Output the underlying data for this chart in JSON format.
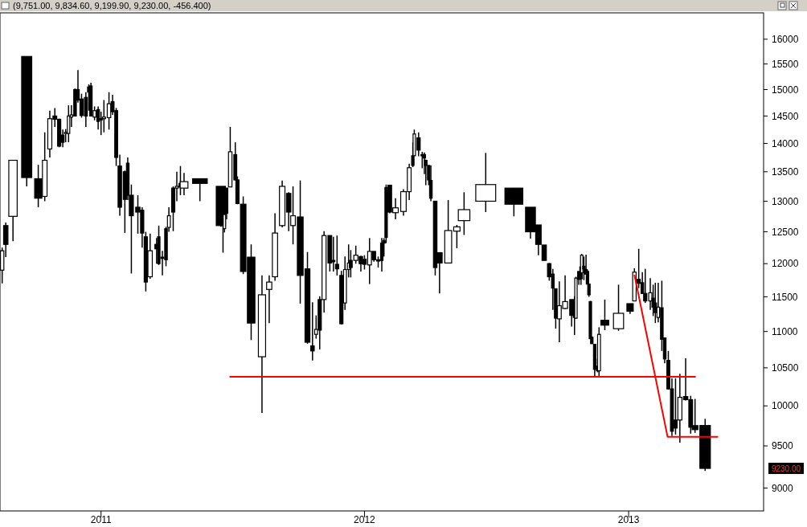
{
  "chart_data": {
    "type": "candlestick",
    "title": "(9,751.00, 9,834.60, 9,199.90, 9,230.00, -456.400)",
    "x": [
      "2010-08-17",
      "2010-08-22",
      "2010-09-01",
      "2010-09-20",
      "2010-10-06",
      "2010-10-15",
      "2010-10-22",
      "2010-10-29",
      "2010-11-04",
      "2010-11-09",
      "2010-11-13",
      "2010-11-17",
      "2010-11-21",
      "2010-11-26",
      "2010-11-30",
      "2010-12-05",
      "2010-12-11",
      "2010-12-15",
      "2010-12-18",
      "2010-12-23",
      "2010-12-28",
      "2011-01-01",
      "2011-01-05",
      "2011-01-12",
      "2011-01-17",
      "2011-01-22",
      "2011-01-27",
      "2011-02-03",
      "2011-02-07",
      "2011-02-12",
      "2011-02-21",
      "2011-02-27",
      "2011-03-04",
      "2011-03-10",
      "2011-03-19",
      "2011-03-22",
      "2011-03-27",
      "2011-04-01",
      "2011-04-05",
      "2011-04-11",
      "2011-04-16",
      "2011-04-21",
      "2011-04-26",
      "2011-05-18",
      "2011-06-16",
      "2011-06-19",
      "2011-06-21",
      "2011-06-24",
      "2011-06-29",
      "2011-07-06",
      "2011-07-09",
      "2011-07-17",
      "2011-07-28",
      "2011-08-12",
      "2011-08-22",
      "2011-08-30",
      "2011-09-09",
      "2011-09-18",
      "2011-09-24",
      "2011-10-04",
      "2011-10-14",
      "2011-10-21",
      "2011-10-26",
      "2011-10-31",
      "2011-11-06",
      "2011-11-14",
      "2011-11-19",
      "2011-11-24",
      "2011-11-30",
      "2011-12-05",
      "2011-12-10",
      "2011-12-13",
      "2011-12-20",
      "2011-12-27",
      "2012-01-01",
      "2012-01-08",
      "2012-01-14",
      "2012-01-20",
      "2012-01-25",
      "2012-01-28",
      "2012-01-31",
      "2012-02-05",
      "2012-02-13",
      "2012-02-24",
      "2012-03-03",
      "2012-03-08",
      "2012-03-10",
      "2012-03-16",
      "2012-03-21",
      "2012-03-24",
      "2012-03-26",
      "2012-03-30",
      "2012-04-02",
      "2012-04-08",
      "2012-04-14",
      "2012-04-26",
      "2012-05-08",
      "2012-05-18",
      "2012-06-17",
      "2012-07-26",
      "2012-08-18",
      "2012-08-29",
      "2012-09-06",
      "2012-09-13",
      "2012-09-18",
      "2012-09-22",
      "2012-09-27",
      "2012-10-05",
      "2012-10-14",
      "2012-10-18",
      "2012-10-20",
      "2012-10-24",
      "2012-10-27",
      "2012-10-28",
      "2012-10-31",
      "2012-11-03",
      "2012-11-05",
      "2012-11-07",
      "2012-11-09",
      "2012-11-11",
      "2012-11-15",
      "2012-11-19",
      "2012-11-21",
      "2012-11-29",
      "2012-12-18",
      "2013-01-03",
      "2013-01-09",
      "2013-01-15",
      "2013-01-20",
      "2013-01-24",
      "2013-01-31",
      "2013-02-04",
      "2013-02-07",
      "2013-02-11",
      "2013-02-16",
      "2013-02-20",
      "2013-02-25",
      "2013-03-02",
      "2013-03-07",
      "2013-03-13",
      "2013-03-21",
      "2013-03-28",
      "2013-04-03",
      "2013-04-17"
    ],
    "ohlc": [
      [
        11900,
        12250,
        11700,
        12200
      ],
      [
        12600,
        12650,
        12100,
        12300
      ],
      [
        12750,
        13700,
        12350,
        13700
      ],
      [
        15650,
        15650,
        13250,
        13400
      ],
      [
        13380,
        13620,
        12900,
        13050
      ],
      [
        13080,
        14200,
        13000,
        13700
      ],
      [
        13900,
        14600,
        13750,
        14450
      ],
      [
        14500,
        14650,
        14300,
        14440
      ],
      [
        14440,
        14450,
        13930,
        13950
      ],
      [
        14150,
        14250,
        13930,
        14020
      ],
      [
        14180,
        14260,
        14020,
        14200
      ],
      [
        14180,
        14700,
        14020,
        14500
      ],
      [
        14480,
        14700,
        14300,
        14520
      ],
      [
        15000,
        15020,
        14500,
        14500
      ],
      [
        15000,
        15380,
        14750,
        14800
      ],
      [
        14820,
        14920,
        14470,
        14510
      ],
      [
        14850,
        14950,
        14300,
        14500
      ],
      [
        15050,
        15100,
        14600,
        14950
      ],
      [
        15070,
        15130,
        14500,
        14500
      ],
      [
        14480,
        14680,
        14420,
        14600
      ],
      [
        14620,
        14680,
        14250,
        14400
      ],
      [
        14450,
        14580,
        14150,
        14430
      ],
      [
        14450,
        14800,
        14200,
        14480
      ],
      [
        14470,
        14950,
        14250,
        14730
      ],
      [
        14770,
        14900,
        14520,
        14580
      ],
      [
        14600,
        14650,
        13600,
        13750
      ],
      [
        13600,
        13800,
        12760,
        12900
      ],
      [
        13500,
        13520,
        12480,
        13030
      ],
      [
        13650,
        13750,
        13020,
        13100
      ],
      [
        13100,
        13280,
        11850,
        12760
      ],
      [
        12900,
        13100,
        12470,
        12820
      ],
      [
        12850,
        12900,
        12250,
        12480
      ],
      [
        12420,
        12500,
        11580,
        11720
      ],
      [
        11800,
        12470,
        11770,
        12200
      ],
      [
        12300,
        12400,
        12000,
        12230
      ],
      [
        12420,
        12600,
        11980,
        12000
      ],
      [
        12100,
        12200,
        11820,
        12080
      ],
      [
        12550,
        12580,
        11960,
        12060
      ],
      [
        12570,
        12900,
        12500,
        12760
      ],
      [
        13220,
        13250,
        12510,
        12820
      ],
      [
        13220,
        13500,
        13000,
        13250
      ],
      [
        13300,
        13600,
        13100,
        13240
      ],
      [
        13220,
        13480,
        13100,
        13330
      ],
      [
        13380,
        13380,
        13000,
        13300
      ],
      [
        13250,
        13250,
        12580,
        12600
      ],
      [
        12600,
        12700,
        12170,
        12620
      ],
      [
        12550,
        12850,
        12490,
        12780
      ],
      [
        13220,
        13220,
        12700,
        12800
      ],
      [
        13240,
        14300,
        13240,
        13850
      ],
      [
        13800,
        14020,
        13350,
        13360
      ],
      [
        13360,
        13420,
        12950,
        12960
      ],
      [
        12950,
        13080,
        11840,
        11880
      ],
      [
        12100,
        12300,
        10880,
        11120
      ],
      [
        10650,
        11820,
        9910,
        11530
      ],
      [
        11610,
        11820,
        11120,
        11720
      ],
      [
        11800,
        12800,
        11740,
        12480
      ],
      [
        12600,
        13350,
        12570,
        13250
      ],
      [
        13130,
        13150,
        12510,
        12820
      ],
      [
        12600,
        13250,
        12300,
        12760
      ],
      [
        12740,
        13350,
        11400,
        11820
      ],
      [
        11920,
        12180,
        10830,
        10850
      ],
      [
        10800,
        11420,
        10600,
        10730
      ],
      [
        10960,
        11230,
        10900,
        11030
      ],
      [
        11460,
        11510,
        10750,
        11020
      ],
      [
        11460,
        12510,
        11270,
        12440
      ],
      [
        12440,
        12440,
        11880,
        12010
      ],
      [
        12050,
        12420,
        11880,
        12030
      ],
      [
        11990,
        12440,
        11820,
        11920
      ],
      [
        11820,
        11890,
        11100,
        11110
      ],
      [
        11410,
        12110,
        11310,
        11910
      ],
      [
        11910,
        12300,
        11790,
        12010
      ],
      [
        12050,
        12210,
        11790,
        11940
      ],
      [
        12050,
        12280,
        12000,
        12130
      ],
      [
        12110,
        12120,
        11880,
        12000
      ],
      [
        12070,
        12130,
        11910,
        11990
      ],
      [
        11980,
        12400,
        11690,
        12190
      ],
      [
        12190,
        12190,
        12030,
        12060
      ],
      [
        12060,
        12110,
        11940,
        12040
      ],
      [
        12320,
        12400,
        11880,
        12050
      ],
      [
        12360,
        12400,
        12110,
        12320
      ],
      [
        13230,
        13280,
        12320,
        12410
      ],
      [
        13270,
        13270,
        12800,
        12820
      ],
      [
        12810,
        13050,
        12700,
        12890
      ],
      [
        12830,
        13200,
        12760,
        13160
      ],
      [
        13160,
        13640,
        13020,
        13570
      ],
      [
        13780,
        14020,
        13580,
        13610
      ],
      [
        13780,
        14250,
        13780,
        14170
      ],
      [
        14100,
        14200,
        13770,
        13880
      ],
      [
        13800,
        13850,
        13560,
        13790
      ],
      [
        13800,
        13840,
        13460,
        13740
      ],
      [
        13700,
        13710,
        13270,
        13610
      ],
      [
        13610,
        13610,
        13270,
        13360
      ],
      [
        13350,
        13610,
        13000,
        13050
      ],
      [
        13000,
        13000,
        11820,
        11940
      ],
      [
        12170,
        12170,
        11550,
        12010
      ],
      [
        12010,
        13020,
        12010,
        12520
      ],
      [
        12510,
        12610,
        12240,
        12580
      ],
      [
        12680,
        13150,
        12450,
        12860
      ],
      [
        13000,
        13830,
        12820,
        13280
      ],
      [
        13220,
        13220,
        12750,
        12950
      ],
      [
        12900,
        12900,
        12390,
        12500
      ],
      [
        12610,
        12610,
        12130,
        12300
      ],
      [
        12290,
        12290,
        12050,
        12050
      ],
      [
        12000,
        12010,
        11740,
        11800
      ],
      [
        11840,
        11920,
        11310,
        11630
      ],
      [
        11620,
        11620,
        11040,
        11190
      ],
      [
        11180,
        11730,
        10850,
        11370
      ],
      [
        11330,
        11820,
        11320,
        11430
      ],
      [
        11460,
        11460,
        11070,
        11230
      ],
      [
        11220,
        11510,
        10950,
        11200
      ],
      [
        11190,
        11800,
        11180,
        11780
      ],
      [
        11880,
        11880,
        11680,
        11760
      ],
      [
        11950,
        12090,
        11680,
        11770
      ],
      [
        11860,
        12150,
        11860,
        12130
      ],
      [
        11960,
        12110,
        11750,
        11920
      ],
      [
        11910,
        12140,
        11840,
        11840
      ],
      [
        11880,
        11900,
        11690,
        11690
      ],
      [
        11690,
        11700,
        11500,
        11530
      ],
      [
        11430,
        11440,
        10900,
        10900
      ],
      [
        10920,
        10930,
        10830,
        10830
      ],
      [
        10820,
        10820,
        10380,
        10480
      ],
      [
        10520,
        10620,
        10440,
        10460
      ],
      [
        10460,
        11060,
        10380,
        10960
      ],
      [
        11160,
        11460,
        11020,
        11090
      ],
      [
        11040,
        11680,
        11010,
        11260
      ],
      [
        11400,
        11400,
        11250,
        11290
      ],
      [
        11440,
        11930,
        11440,
        11870
      ],
      [
        11760,
        12230,
        11630,
        11700
      ],
      [
        11710,
        11870,
        11550,
        11550
      ],
      [
        11550,
        11920,
        11410,
        11440
      ],
      [
        11440,
        11780,
        11310,
        11560
      ],
      [
        11480,
        11680,
        11220,
        11350
      ],
      [
        11410,
        11710,
        11120,
        11270
      ],
      [
        11200,
        11710,
        11130,
        11350
      ],
      [
        11340,
        11740,
        10730,
        10890
      ],
      [
        10910,
        10910,
        10560,
        10620
      ],
      [
        10600,
        10730,
        10210,
        10220
      ],
      [
        10220,
        10360,
        9620,
        9680
      ],
      [
        9820,
        10360,
        9640,
        9720
      ],
      [
        9820,
        10420,
        9540,
        10110
      ],
      [
        10120,
        10630,
        10070,
        10080
      ],
      [
        10080,
        10130,
        9650,
        9730
      ],
      [
        9750,
        10090,
        9660,
        9700
      ],
      [
        9751,
        9834.6,
        9199.9,
        9230
      ]
    ],
    "series": [
      {
        "type": "line",
        "color": "#ff0000",
        "x": [
          "2011-06-28",
          "2013-04-04"
        ],
        "values": [
          10380,
          10380
        ]
      },
      {
        "type": "line",
        "color": "#ff0000",
        "x": [
          "2013-01-09",
          "2013-02-24",
          "2013-05-05"
        ],
        "values": [
          11830,
          9610,
          9610
        ]
      }
    ],
    "annotations": [
      "9230.00"
    ],
    "xlim": [
      "2010-08-14",
      "2013-07-07"
    ],
    "xticks": [
      {
        "value": "2011-01-01",
        "label": "2011"
      },
      {
        "value": "2012-01-01",
        "label": "2012"
      },
      {
        "value": "2013-01-01",
        "label": "2013"
      }
    ],
    "ylim": [
      8740,
      16550
    ],
    "yticks": [
      9000,
      9500,
      10000,
      10500,
      11000,
      11500,
      12000,
      12500,
      13000,
      13500,
      14000,
      14500,
      15000,
      15500,
      16000
    ],
    "log": "y"
  }
}
